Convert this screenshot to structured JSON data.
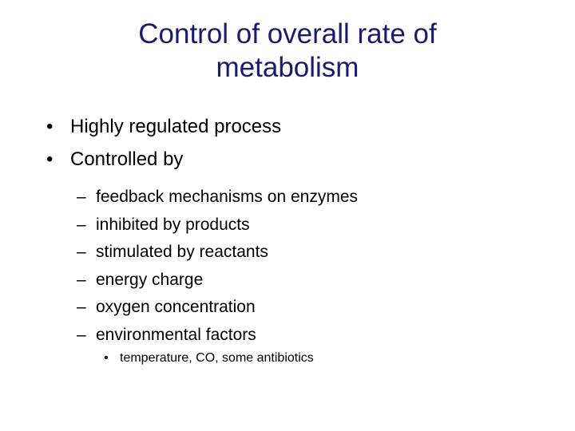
{
  "title": "Control of overall rate of metabolism",
  "bullets": [
    {
      "text": "Highly regulated process"
    },
    {
      "text": "Controlled by",
      "items": [
        {
          "text": "feedback mechanisms on enzymes"
        },
        {
          "text": "inhibited by products"
        },
        {
          "text": "stimulated by reactants"
        },
        {
          "text": "energy charge"
        },
        {
          "text": "oxygen concentration"
        },
        {
          "text": "environmental factors",
          "items": [
            "temperature, CO, some antibiotics"
          ]
        }
      ]
    }
  ]
}
